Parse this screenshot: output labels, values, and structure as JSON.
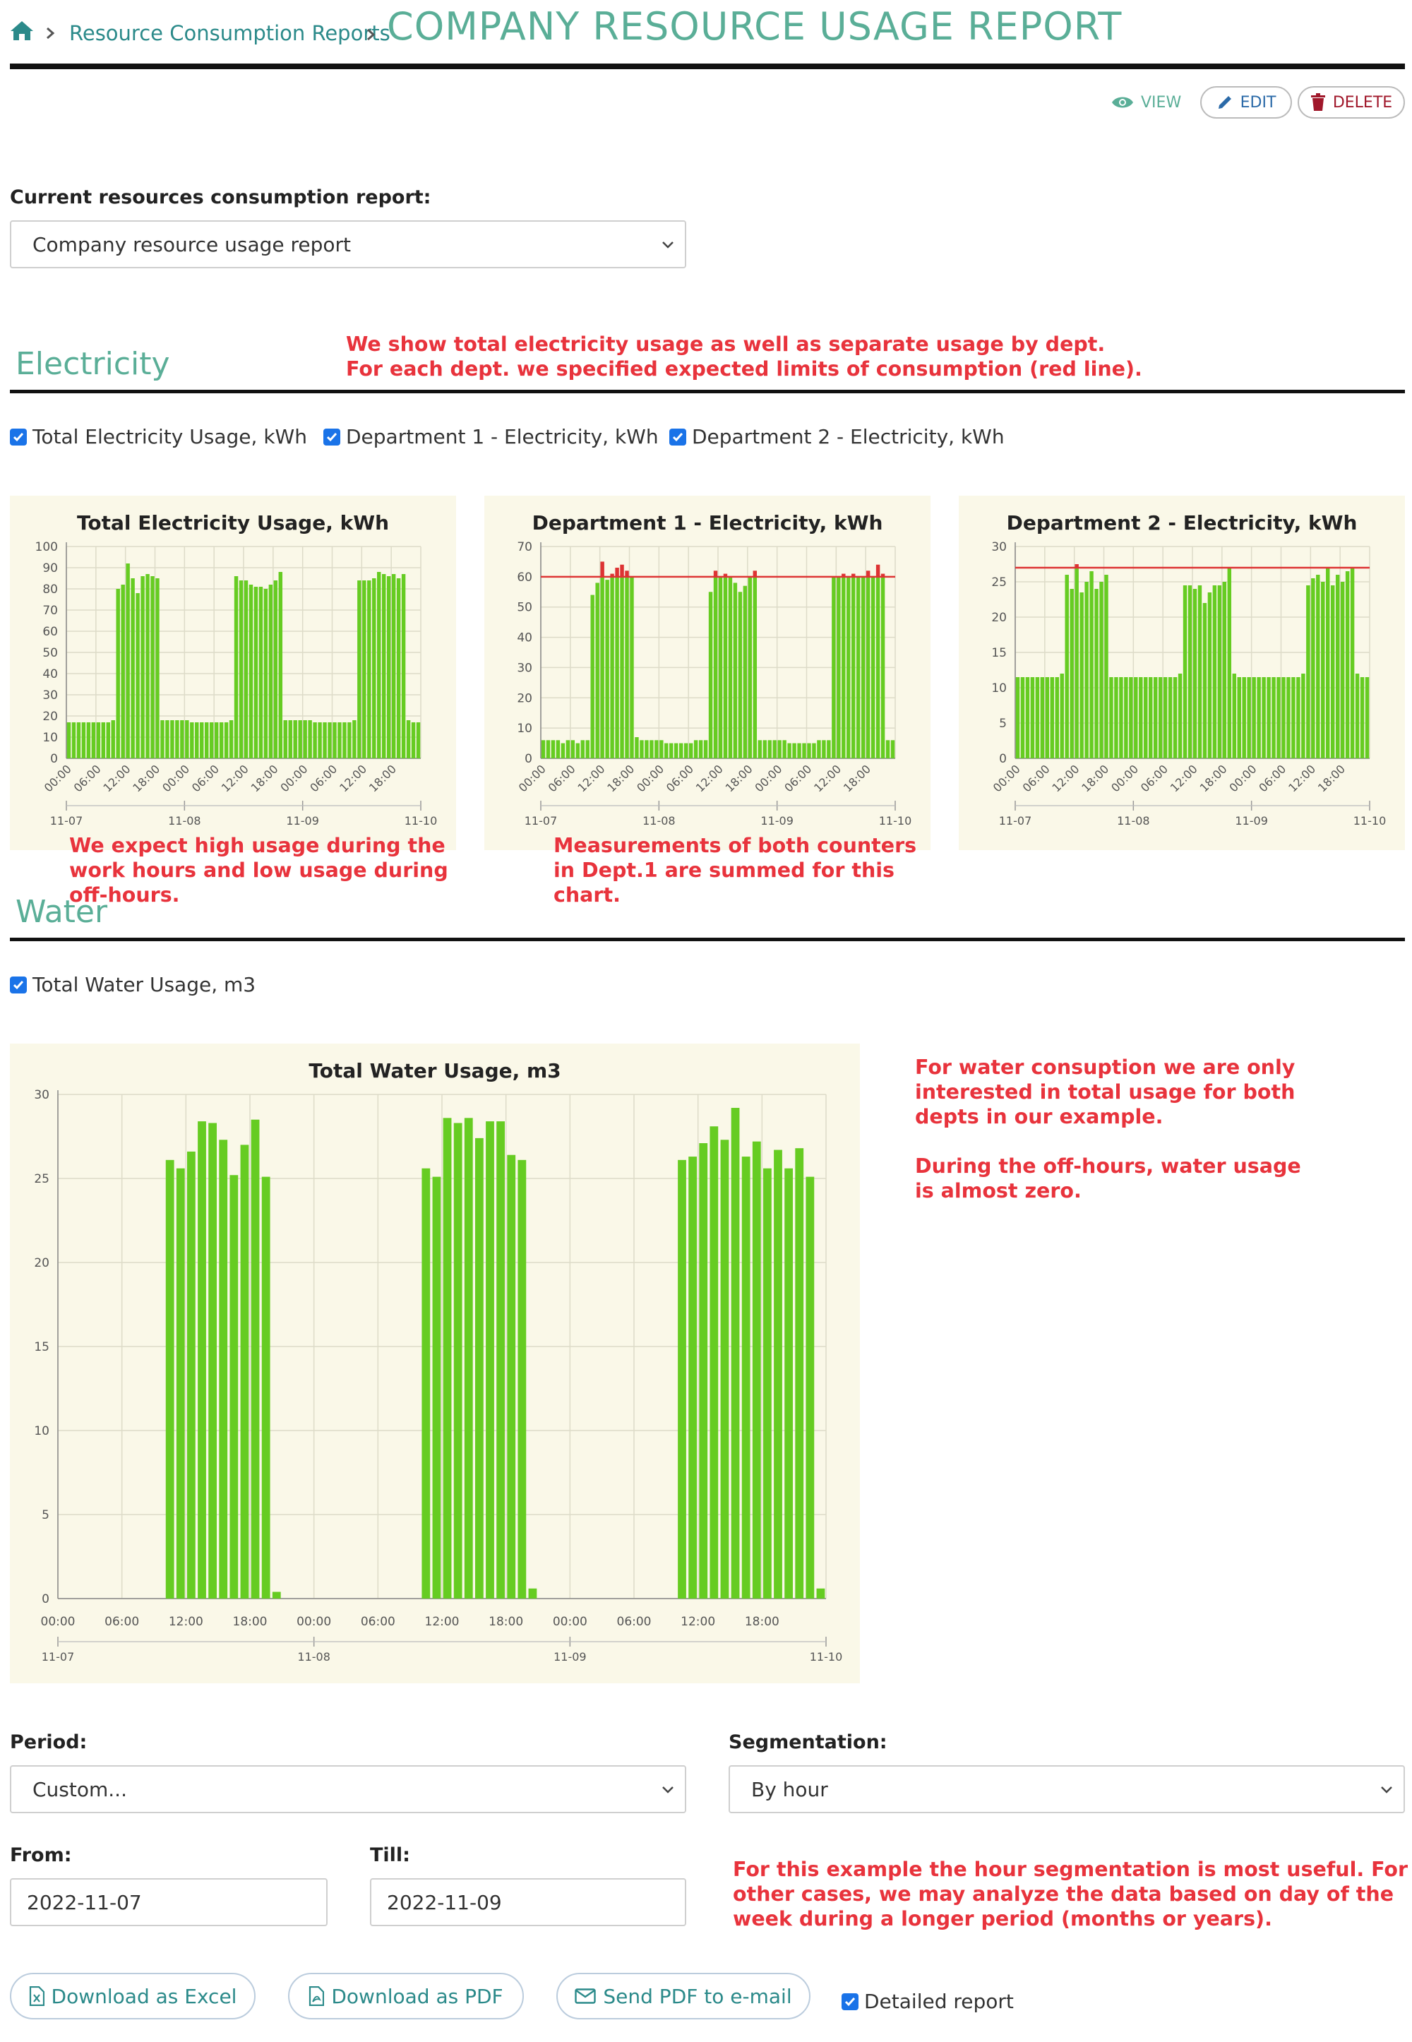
{
  "breadcrumb": {
    "home_icon": "home-icon",
    "link_label": "Resource Consumption Reports",
    "title": "COMPANY RESOURCE USAGE REPORT"
  },
  "toolbar": {
    "view_label": "VIEW",
    "edit_label": "EDIT",
    "delete_label": "DELETE"
  },
  "report_select": {
    "label": "Current resources consumption report:",
    "value": "Company resource usage report"
  },
  "electricity": {
    "title": "Electricity",
    "note": "We show total electricity usage as well as separate usage by dept.\nFor each dept. we specified expected limits of consumption (red line).",
    "checkboxes": [
      "Total Electricity Usage, kWh",
      "Department 1 - Electricity, kWh",
      "Department 2 - Electricity, kWh"
    ],
    "note_left": "We expect high usage during the\nwork hours and low usage during\noff-hours.",
    "note_mid": "Measurements of both counters\nin Dept.1 are summed for this\nchart."
  },
  "water": {
    "title": "Water",
    "checkboxes": [
      "Total Water Usage, m3"
    ],
    "note": "For water consuption we are only\ninterested in total usage for both\ndepts in our example.\n\nDuring the off-hours, water usage\nis almost zero."
  },
  "chart_data": [
    {
      "type": "bar",
      "title": "Total Electricity Usage, kWh",
      "ylim": [
        0,
        100
      ],
      "yticks": [
        0,
        10,
        20,
        30,
        40,
        50,
        60,
        70,
        80,
        90,
        100
      ],
      "hour_ticks": [
        "00:00",
        "06:00",
        "12:00",
        "18:00"
      ],
      "day_ticks": [
        "11-07",
        "11-08",
        "11-09",
        "11-10"
      ],
      "limit": null,
      "bar_color": "#66cc22",
      "over_color": "#dd3333",
      "values": [
        17,
        17,
        17,
        17,
        17,
        17,
        17,
        17,
        17,
        18,
        80,
        82,
        92,
        85,
        78,
        86,
        87,
        86,
        85,
        18,
        18,
        18,
        18,
        18,
        18,
        17,
        17,
        17,
        17,
        17,
        17,
        17,
        17,
        18,
        86,
        84,
        84,
        82,
        81,
        81,
        80,
        82,
        84,
        88,
        18,
        18,
        18,
        18,
        18,
        18,
        17,
        17,
        17,
        17,
        17,
        17,
        17,
        17,
        18,
        84,
        84,
        84,
        85,
        88,
        87,
        86,
        87,
        85,
        87,
        18,
        17,
        17
      ]
    },
    {
      "type": "bar",
      "title": "Department 1 - Electricity, kWh",
      "ylim": [
        0,
        70
      ],
      "yticks": [
        0,
        10,
        20,
        30,
        40,
        50,
        60,
        70
      ],
      "hour_ticks": [
        "00:00",
        "06:00",
        "12:00",
        "18:00"
      ],
      "day_ticks": [
        "11-07",
        "11-08",
        "11-09",
        "11-10"
      ],
      "limit": 60,
      "bar_color": "#66cc22",
      "over_color": "#dd3333",
      "values": [
        6,
        6,
        6,
        6,
        5,
        6,
        6,
        5,
        6,
        6,
        54,
        58,
        65,
        59,
        61,
        63,
        64,
        62,
        60,
        7,
        6,
        6,
        6,
        6,
        6,
        5,
        5,
        5,
        5,
        5,
        5,
        6,
        6,
        6,
        55,
        62,
        60,
        61,
        60,
        58,
        55,
        57,
        60,
        62,
        6,
        6,
        6,
        6,
        6,
        6,
        5,
        5,
        5,
        5,
        5,
        5,
        6,
        6,
        6,
        60,
        60,
        61,
        60,
        61,
        60,
        60,
        62,
        60,
        64,
        61,
        6,
        6
      ]
    },
    {
      "type": "bar",
      "title": "Department 2 - Electricity, kWh",
      "ylim": [
        0,
        30
      ],
      "yticks": [
        0,
        5,
        10,
        15,
        20,
        25,
        30
      ],
      "hour_ticks": [
        "00:00",
        "06:00",
        "12:00",
        "18:00"
      ],
      "day_ticks": [
        "11-07",
        "11-08",
        "11-09",
        "11-10"
      ],
      "limit": 27,
      "bar_color": "#66cc22",
      "over_color": "#dd3333",
      "values": [
        11.5,
        11.5,
        11.5,
        11.5,
        11.5,
        11.5,
        11.5,
        11.5,
        11.5,
        12,
        26,
        24,
        27.5,
        23.5,
        25,
        26.5,
        24,
        25,
        26,
        11.5,
        11.5,
        11.5,
        11.5,
        11.5,
        11.5,
        11.5,
        11.5,
        11.5,
        11.5,
        11.5,
        11.5,
        11.5,
        11.5,
        12,
        24.5,
        24.5,
        24,
        24.5,
        22,
        23.5,
        24.5,
        24.5,
        25,
        27,
        12,
        11.5,
        11.5,
        11.5,
        11.5,
        11.5,
        11.5,
        11.5,
        11.5,
        11.5,
        11.5,
        11.5,
        11.5,
        11.5,
        12,
        24.5,
        25.5,
        26,
        25,
        27,
        24.5,
        26,
        25,
        26.5,
        27,
        12,
        11.5,
        11.5
      ]
    },
    {
      "type": "bar",
      "title": "Total Water Usage, m3",
      "ylim": [
        0,
        30
      ],
      "yticks": [
        0,
        5,
        10,
        15,
        20,
        25,
        30
      ],
      "hour_ticks": [
        "00:00",
        "06:00",
        "12:00",
        "18:00"
      ],
      "day_ticks": [
        "11-07",
        "11-08",
        "11-09",
        "11-10"
      ],
      "limit": null,
      "bar_color": "#66cc22",
      "over_color": "#dd3333",
      "values": [
        0,
        0,
        0,
        0,
        0,
        0,
        0,
        0,
        0,
        0,
        26.1,
        25.6,
        26.6,
        28.4,
        28.3,
        27.3,
        25.2,
        27.0,
        28.5,
        25.1,
        0.4,
        0,
        0,
        0,
        0,
        0,
        0,
        0,
        0,
        0,
        0,
        0,
        0,
        0,
        25.6,
        25.1,
        28.6,
        28.3,
        28.6,
        27.4,
        28.4,
        28.4,
        26.4,
        26.1,
        0.6,
        0,
        0,
        0,
        0,
        0,
        0,
        0,
        0,
        0,
        0,
        0,
        0,
        0,
        26.1,
        26.3,
        27.1,
        28.1,
        27.3,
        29.2,
        26.3,
        27.2,
        25.6,
        26.7,
        25.6,
        26.8,
        25.1,
        0.6
      ]
    }
  ],
  "period": {
    "label": "Period:",
    "value": "Custom..."
  },
  "segmentation": {
    "label": "Segmentation:",
    "value": "By hour"
  },
  "from": {
    "label": "From:",
    "value": "2022-11-07"
  },
  "till": {
    "label": "Till:",
    "value": "2022-11-09"
  },
  "segmentation_note": "For this example the hour segmentation is most useful. For\nother cases, we may analyze the data based on day of the\nweek during a longer period (months or years).",
  "actions": {
    "excel_label": "Download as Excel",
    "pdf_label": "Download as PDF",
    "email_label": "Send PDF to e-mail",
    "detailed_label": "Detailed report"
  }
}
